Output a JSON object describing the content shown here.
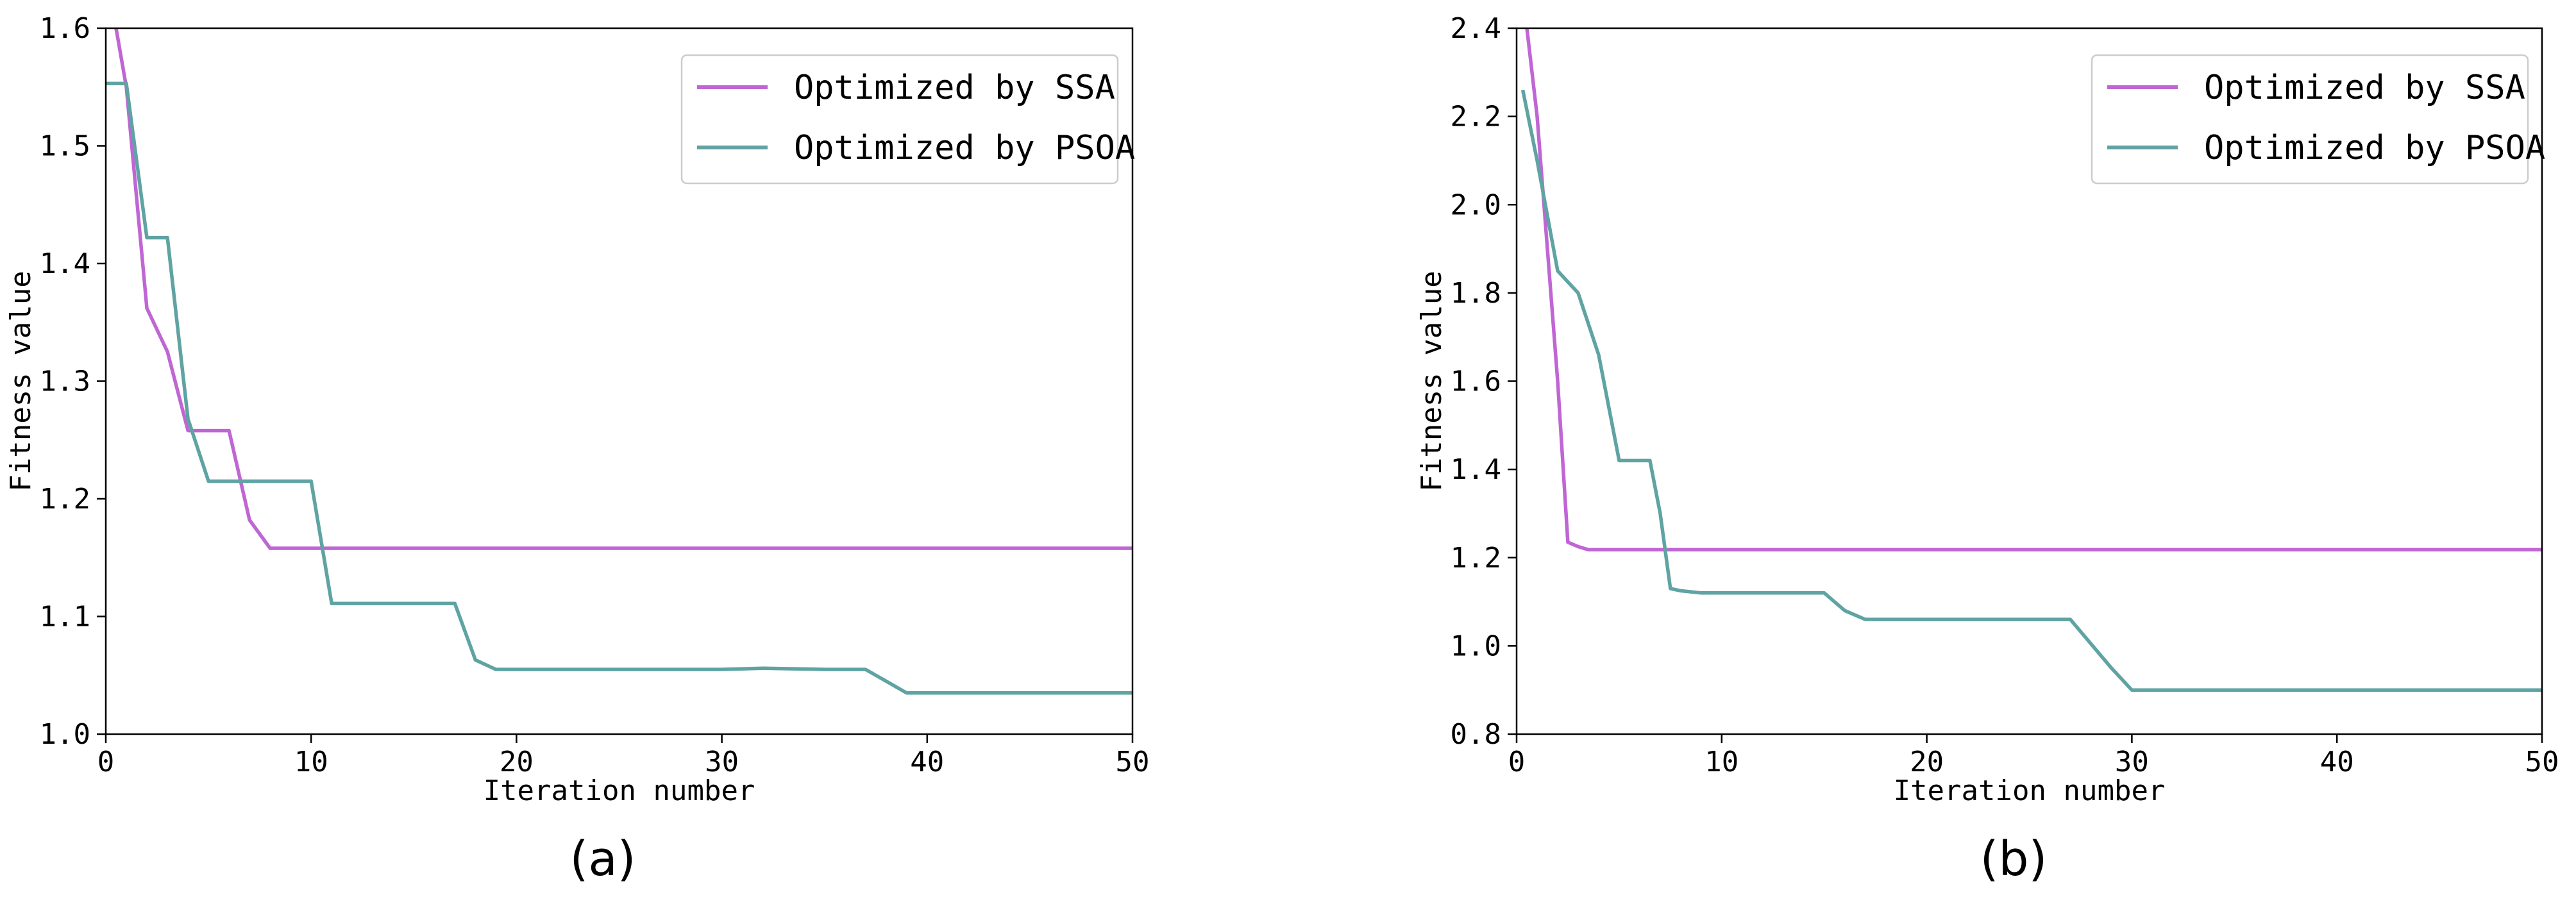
{
  "chart_data": [
    {
      "type": "line",
      "panel_label": "(a)",
      "xlabel": "Iteration number",
      "ylabel": "Fitness value",
      "xlim": [
        0,
        50
      ],
      "ylim": [
        1.0,
        1.6
      ],
      "xticks": [
        "0",
        "10",
        "20",
        "30",
        "40",
        "50"
      ],
      "yticks": [
        "1.0",
        "1.1",
        "1.2",
        "1.3",
        "1.4",
        "1.5",
        "1.6"
      ],
      "grid": false,
      "legend_position": "top-right",
      "series": [
        {
          "name": "Optimized by SSA",
          "color": "#c066d4",
          "x": [
            0.5,
            1,
            2,
            3,
            4,
            5,
            6,
            7,
            8,
            9,
            10,
            20,
            30,
            40,
            50
          ],
          "y": [
            1.6,
            1.55,
            1.362,
            1.325,
            1.258,
            1.258,
            1.258,
            1.182,
            1.158,
            1.158,
            1.158,
            1.158,
            1.158,
            1.158,
            1.158
          ]
        },
        {
          "name": "Optimized by PSOA",
          "color": "#5fa3a3",
          "x": [
            0,
            1,
            2,
            3,
            4,
            5,
            6,
            7,
            8,
            9,
            10,
            11,
            12,
            13,
            14,
            15,
            16,
            17,
            18,
            19,
            20,
            25,
            30,
            32,
            35,
            37,
            38,
            39,
            40,
            45,
            50
          ],
          "y": [
            1.553,
            1.553,
            1.422,
            1.422,
            1.268,
            1.215,
            1.215,
            1.215,
            1.215,
            1.215,
            1.215,
            1.111,
            1.111,
            1.111,
            1.111,
            1.111,
            1.111,
            1.111,
            1.063,
            1.055,
            1.055,
            1.055,
            1.055,
            1.056,
            1.055,
            1.055,
            1.045,
            1.035,
            1.035,
            1.035,
            1.035
          ]
        }
      ]
    },
    {
      "type": "line",
      "panel_label": "(b)",
      "xlabel": "Iteration number",
      "ylabel": "Fitness value",
      "xlim": [
        0,
        50
      ],
      "ylim": [
        0.8,
        2.4
      ],
      "xticks": [
        "0",
        "10",
        "20",
        "30",
        "40",
        "50"
      ],
      "yticks": [
        "0.8",
        "1.0",
        "1.2",
        "1.4",
        "1.6",
        "1.8",
        "2.0",
        "2.2",
        "2.4"
      ],
      "grid": false,
      "legend_position": "top-right",
      "series": [
        {
          "name": "Optimized by SSA",
          "color": "#c066d4",
          "x": [
            0.5,
            1,
            2,
            2.5,
            3,
            3.5,
            4,
            10,
            20,
            30,
            40,
            50
          ],
          "y": [
            2.4,
            2.2,
            1.6,
            1.235,
            1.225,
            1.218,
            1.218,
            1.218,
            1.218,
            1.218,
            1.218,
            1.218
          ]
        },
        {
          "name": "Optimized by PSOA",
          "color": "#5fa3a3",
          "x": [
            0.3,
            1,
            2,
            3,
            4,
            5,
            5.5,
            6.5,
            7,
            7.5,
            8,
            9,
            10,
            15,
            16,
            17,
            20,
            25,
            27,
            29,
            30,
            35,
            40,
            45,
            50
          ],
          "y": [
            2.26,
            2.1,
            1.85,
            1.8,
            1.66,
            1.42,
            1.42,
            1.42,
            1.3,
            1.13,
            1.125,
            1.12,
            1.12,
            1.12,
            1.08,
            1.06,
            1.06,
            1.06,
            1.06,
            0.95,
            0.9,
            0.9,
            0.9,
            0.9,
            0.9
          ]
        }
      ]
    }
  ]
}
